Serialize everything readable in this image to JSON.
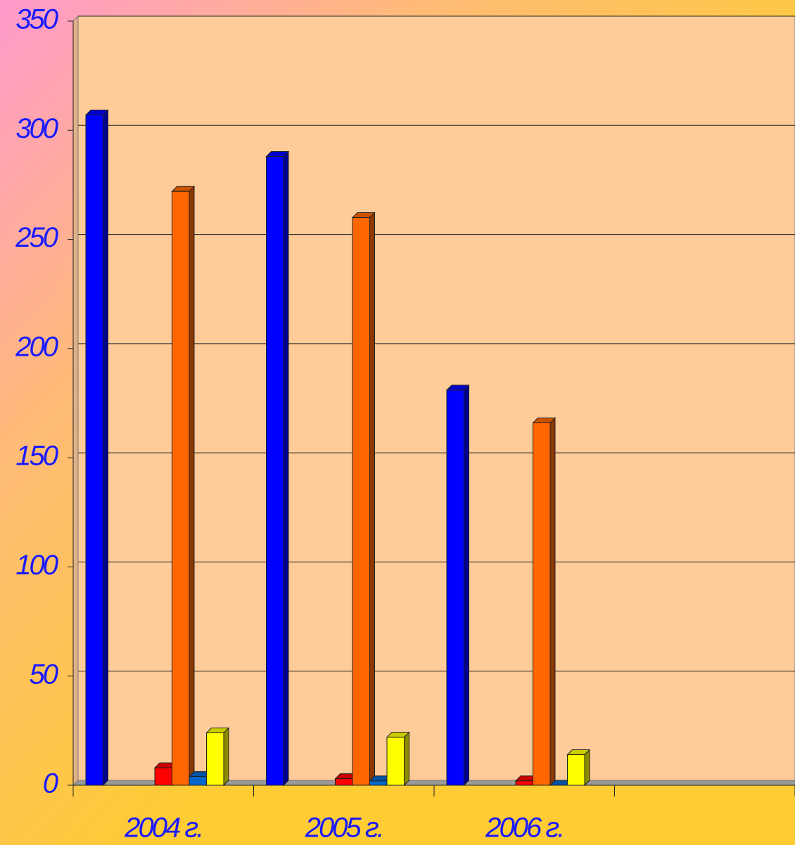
{
  "chart_data": {
    "type": "bar3d",
    "categories": [
      "2004 г.",
      "2005 г.",
      "2006 г.",
      null
    ],
    "series": [
      {
        "color": "#0000ff",
        "values": [
          307,
          288,
          181,
          null
        ]
      },
      {
        "color": "#ff0000",
        "values": [
          8,
          3,
          2,
          null
        ]
      },
      {
        "color": "#ff6600",
        "values": [
          272,
          260,
          166,
          null
        ]
      },
      {
        "color": "#0066cc",
        "values": [
          4,
          2,
          0,
          null
        ]
      },
      {
        "color": "#ffff00",
        "values": [
          24,
          22,
          14,
          null
        ]
      }
    ],
    "ylim": [
      0,
      350
    ],
    "yticks": [
      0,
      50,
      100,
      150,
      200,
      250,
      300,
      350
    ],
    "grid": true
  }
}
